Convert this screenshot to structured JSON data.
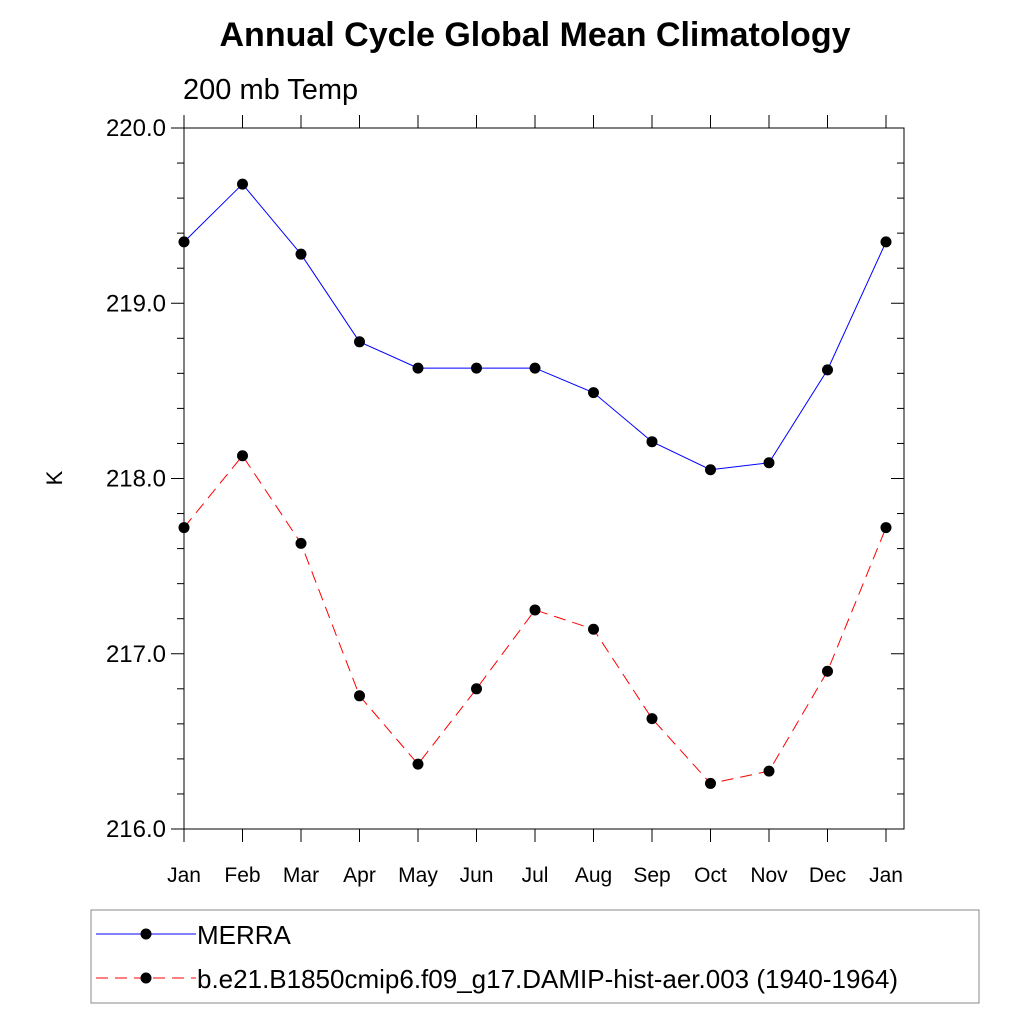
{
  "chart_data": {
    "type": "line",
    "title": "Annual Cycle Global Mean Climatology",
    "subtitle": "200 mb Temp",
    "xlabel": "",
    "ylabel": "K",
    "categories": [
      "Jan",
      "Feb",
      "Mar",
      "Apr",
      "May",
      "Jun",
      "Jul",
      "Aug",
      "Sep",
      "Oct",
      "Nov",
      "Dec",
      "Jan"
    ],
    "ylim": [
      216.0,
      220.0
    ],
    "yticks": [
      216.0,
      217.0,
      218.0,
      219.0,
      220.0
    ],
    "ytick_labels": [
      "216.0",
      "217.0",
      "218.0",
      "219.0",
      "220.0"
    ],
    "grid": false,
    "legend_position": "bottom",
    "series": [
      {
        "name": "MERRA",
        "color": "#0000ff",
        "line_style": "solid",
        "marker": "filled-circle",
        "values": [
          219.35,
          219.68,
          219.28,
          218.78,
          218.63,
          218.63,
          218.63,
          218.49,
          218.21,
          218.05,
          218.09,
          218.62,
          219.35
        ]
      },
      {
        "name": "b.e21.B1850cmip6.f09_g17.DAMIP-hist-aer.003 (1940-1964)",
        "color": "#ff0000",
        "line_style": "dashed",
        "marker": "filled-circle",
        "values": [
          217.72,
          218.13,
          217.63,
          216.76,
          216.37,
          216.8,
          217.25,
          217.14,
          216.63,
          216.26,
          216.33,
          216.9,
          217.72
        ]
      }
    ]
  }
}
